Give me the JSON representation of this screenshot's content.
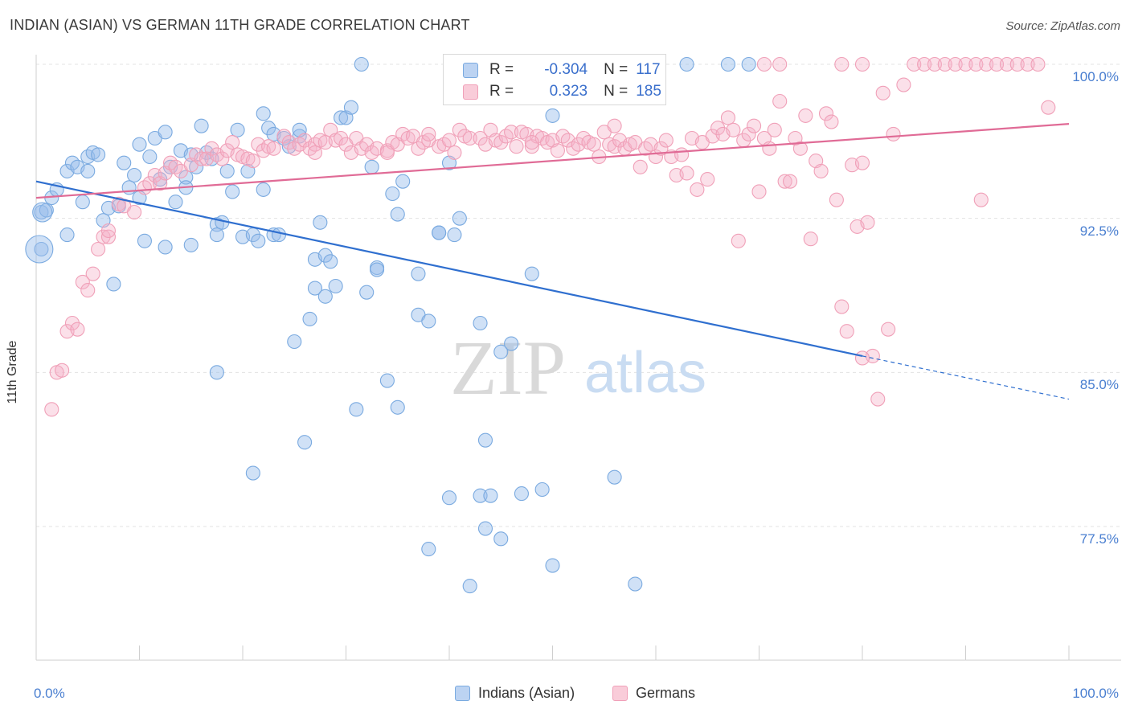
{
  "chart_data": {
    "type": "scatter",
    "title": "INDIAN (ASIAN) VS GERMAN 11TH GRADE CORRELATION CHART",
    "source": "Source: ZipAtlas.com",
    "ylabel": "11th Grade",
    "xlabel": "",
    "xlim": [
      0,
      100
    ],
    "ylim": [
      71,
      101.5
    ],
    "y_ticks": [
      {
        "value": 100.0,
        "label": "100.0%"
      },
      {
        "value": 92.5,
        "label": "92.5%"
      },
      {
        "value": 85.0,
        "label": "85.0%"
      },
      {
        "value": 77.5,
        "label": "77.5%"
      }
    ],
    "x_tick_labels": {
      "left": "0.0%",
      "right": "100.0%"
    },
    "watermark": {
      "zip": "ZIP",
      "atlas": "atlas"
    },
    "legend": {
      "r_label": "R =",
      "n_label": "N =",
      "entries": [
        {
          "name": "Indians (Asian)",
          "r": "-0.304",
          "n": "117",
          "color": "#7aaae0",
          "fill": "#a9c8ef",
          "line": "#2f6fcf"
        },
        {
          "name": "Germans",
          "r": "0.323",
          "n": "185",
          "color": "#f0a0b8",
          "fill": "#f8c4d2",
          "line": "#e06b96"
        }
      ]
    },
    "series": [
      {
        "name": "Indians (Asian)",
        "trend": {
          "x0": 0,
          "y0": 94.3,
          "x1": 80,
          "y1": 85.8,
          "dash_x1": 100,
          "dash_y1": 83.7
        },
        "points": [
          [
            0.5,
            91.0
          ],
          [
            0.5,
            92.8
          ],
          [
            1,
            92.9
          ],
          [
            1.5,
            93.5
          ],
          [
            2,
            93.9
          ],
          [
            3,
            94.8
          ],
          [
            3,
            91.7
          ],
          [
            3.5,
            95.2
          ],
          [
            4,
            95.0
          ],
          [
            4.5,
            93.3
          ],
          [
            5,
            95.5
          ],
          [
            5,
            94.8
          ],
          [
            5.5,
            95.7
          ],
          [
            6,
            95.6
          ],
          [
            6.5,
            92.4
          ],
          [
            7,
            93.0
          ],
          [
            7.5,
            89.3
          ],
          [
            8,
            93.1
          ],
          [
            8.5,
            95.2
          ],
          [
            9,
            94.0
          ],
          [
            9.5,
            94.6
          ],
          [
            10,
            96.1
          ],
          [
            10,
            93.5
          ],
          [
            10.5,
            91.4
          ],
          [
            11,
            95.5
          ],
          [
            11.5,
            96.4
          ],
          [
            12,
            94.4
          ],
          [
            12.5,
            96.7
          ],
          [
            12.5,
            91.1
          ],
          [
            13,
            95.0
          ],
          [
            13.5,
            93.3
          ],
          [
            14,
            95.8
          ],
          [
            14.5,
            94.5
          ],
          [
            14.5,
            94.0
          ],
          [
            15,
            95.6
          ],
          [
            15.5,
            95.0
          ],
          [
            16,
            97.0
          ],
          [
            16.5,
            95.7
          ],
          [
            17,
            95.4
          ],
          [
            17.5,
            92.2
          ],
          [
            17.5,
            91.7
          ],
          [
            18,
            92.3
          ],
          [
            18.5,
            94.8
          ],
          [
            19,
            93.8
          ],
          [
            19.5,
            96.8
          ],
          [
            20,
            91.6
          ],
          [
            20.5,
            94.8
          ],
          [
            21,
            91.7
          ],
          [
            21.5,
            91.4
          ],
          [
            22,
            97.6
          ],
          [
            22,
            93.9
          ],
          [
            22.5,
            96.9
          ],
          [
            23,
            96.6
          ],
          [
            23,
            91.7
          ],
          [
            23.5,
            91.7
          ],
          [
            24,
            96.4
          ],
          [
            24.5,
            96.0
          ],
          [
            25,
            86.5
          ],
          [
            25.5,
            96.5
          ],
          [
            25.5,
            96.8
          ],
          [
            26,
            81.6
          ],
          [
            26.5,
            87.6
          ],
          [
            27,
            89.1
          ],
          [
            27,
            90.5
          ],
          [
            27.5,
            92.3
          ],
          [
            28,
            88.7
          ],
          [
            28,
            90.7
          ],
          [
            28.5,
            90.4
          ],
          [
            29,
            89.2
          ],
          [
            29.5,
            97.4
          ],
          [
            30,
            97.4
          ],
          [
            30.5,
            97.9
          ],
          [
            31,
            83.2
          ],
          [
            31.5,
            100.0
          ],
          [
            32,
            88.9
          ],
          [
            32.5,
            95.0
          ],
          [
            33,
            90.1
          ],
          [
            33,
            90.0
          ],
          [
            34,
            84.6
          ],
          [
            34.5,
            93.7
          ],
          [
            35,
            83.3
          ],
          [
            35,
            92.7
          ],
          [
            35.5,
            94.3
          ],
          [
            37,
            87.8
          ],
          [
            38,
            87.5
          ],
          [
            39,
            91.8
          ],
          [
            39,
            91.8
          ],
          [
            40,
            95.2
          ],
          [
            40.5,
            91.7
          ],
          [
            41,
            92.5
          ],
          [
            42,
            74.6
          ],
          [
            43,
            87.4
          ],
          [
            43,
            79.0
          ],
          [
            43.5,
            81.7
          ],
          [
            43.5,
            77.4
          ],
          [
            44,
            79.0
          ],
          [
            45,
            86.0
          ],
          [
            45,
            76.9
          ],
          [
            46,
            86.4
          ],
          [
            47,
            79.1
          ],
          [
            48,
            89.8
          ],
          [
            50,
            75.6
          ],
          [
            50,
            97.5
          ],
          [
            56,
            79.9
          ],
          [
            58,
            74.7
          ],
          [
            63,
            100.0
          ],
          [
            67,
            100.0
          ],
          [
            69,
            100.0
          ],
          [
            49,
            79.3
          ],
          [
            21,
            80.1
          ],
          [
            15,
            91.2
          ],
          [
            17.5,
            85.0
          ],
          [
            37,
            89.8
          ],
          [
            38,
            76.4
          ],
          [
            40,
            78.9
          ]
        ]
      },
      {
        "name": "Germans",
        "trend": {
          "x0": 0,
          "y0": 93.5,
          "x1": 100,
          "y1": 97.1
        },
        "points": [
          [
            1.5,
            83.2
          ],
          [
            2,
            85.0
          ],
          [
            2.5,
            85.1
          ],
          [
            3,
            87.0
          ],
          [
            3.5,
            87.4
          ],
          [
            4,
            87.1
          ],
          [
            4.5,
            89.4
          ],
          [
            5,
            89.0
          ],
          [
            5.5,
            89.8
          ],
          [
            6,
            91.0
          ],
          [
            6.5,
            91.6
          ],
          [
            7,
            91.6
          ],
          [
            7,
            91.9
          ],
          [
            8,
            93.2
          ],
          [
            8.5,
            93.1
          ],
          [
            9.5,
            92.8
          ],
          [
            10.5,
            94.0
          ],
          [
            11,
            94.2
          ],
          [
            11.5,
            94.6
          ],
          [
            12,
            94.2
          ],
          [
            12.5,
            94.7
          ],
          [
            13,
            95.2
          ],
          [
            13.5,
            95.0
          ],
          [
            14,
            94.8
          ],
          [
            15,
            95.1
          ],
          [
            15.5,
            95.6
          ],
          [
            16,
            95.4
          ],
          [
            16.5,
            95.4
          ],
          [
            17,
            95.9
          ],
          [
            17.5,
            95.6
          ],
          [
            18,
            95.4
          ],
          [
            18.5,
            95.8
          ],
          [
            19,
            96.2
          ],
          [
            19.5,
            95.6
          ],
          [
            20,
            95.5
          ],
          [
            20.5,
            95.4
          ],
          [
            21,
            95.3
          ],
          [
            21.5,
            96.1
          ],
          [
            22,
            95.8
          ],
          [
            22.5,
            96.0
          ],
          [
            23,
            95.9
          ],
          [
            24,
            96.5
          ],
          [
            24.5,
            96.2
          ],
          [
            25,
            95.9
          ],
          [
            25.5,
            96.1
          ],
          [
            26,
            96.3
          ],
          [
            26.5,
            95.9
          ],
          [
            27,
            96.1
          ],
          [
            27.5,
            96.3
          ],
          [
            28,
            96.2
          ],
          [
            28.5,
            96.8
          ],
          [
            29,
            96.3
          ],
          [
            29.5,
            96.4
          ],
          [
            30,
            96.1
          ],
          [
            30.5,
            95.7
          ],
          [
            31,
            96.4
          ],
          [
            31.5,
            95.9
          ],
          [
            32,
            96.1
          ],
          [
            32.5,
            95.7
          ],
          [
            33,
            95.9
          ],
          [
            34,
            95.8
          ],
          [
            34.5,
            96.2
          ],
          [
            35,
            96.1
          ],
          [
            35.5,
            96.6
          ],
          [
            36,
            96.4
          ],
          [
            36.5,
            96.5
          ],
          [
            37,
            95.9
          ],
          [
            37.5,
            96.2
          ],
          [
            38,
            96.3
          ],
          [
            39,
            96.0
          ],
          [
            39.5,
            96.1
          ],
          [
            40,
            96.3
          ],
          [
            40.5,
            95.7
          ],
          [
            41,
            96.8
          ],
          [
            41.5,
            96.5
          ],
          [
            42,
            96.4
          ],
          [
            43,
            96.4
          ],
          [
            43.5,
            96.1
          ],
          [
            44,
            96.8
          ],
          [
            44.5,
            96.3
          ],
          [
            45,
            96.2
          ],
          [
            45.5,
            96.5
          ],
          [
            46,
            96.7
          ],
          [
            46.5,
            96.0
          ],
          [
            47,
            96.7
          ],
          [
            47.5,
            96.6
          ],
          [
            48,
            96.0
          ],
          [
            48.5,
            96.5
          ],
          [
            49,
            96.4
          ],
          [
            49.5,
            96.2
          ],
          [
            50,
            96.3
          ],
          [
            50.5,
            95.8
          ],
          [
            51,
            96.5
          ],
          [
            51.5,
            96.3
          ],
          [
            52,
            95.9
          ],
          [
            52.5,
            96.1
          ],
          [
            53,
            96.4
          ],
          [
            53.5,
            96.2
          ],
          [
            54,
            96.1
          ],
          [
            54.5,
            95.5
          ],
          [
            55,
            96.7
          ],
          [
            55.5,
            96.1
          ],
          [
            56,
            96.0
          ],
          [
            56.5,
            96.3
          ],
          [
            57,
            95.9
          ],
          [
            57.5,
            96.1
          ],
          [
            58,
            96.2
          ],
          [
            58.5,
            95.0
          ],
          [
            59,
            95.9
          ],
          [
            59.5,
            96.1
          ],
          [
            60,
            95.5
          ],
          [
            60.5,
            95.9
          ],
          [
            61,
            96.3
          ],
          [
            61.5,
            95.5
          ],
          [
            62,
            94.6
          ],
          [
            62.5,
            95.6
          ],
          [
            63,
            94.7
          ],
          [
            63.5,
            96.4
          ],
          [
            64,
            93.9
          ],
          [
            64.5,
            96.2
          ],
          [
            65,
            94.4
          ],
          [
            65.5,
            96.5
          ],
          [
            66,
            96.9
          ],
          [
            66.5,
            96.6
          ],
          [
            67,
            97.4
          ],
          [
            67.5,
            96.8
          ],
          [
            68,
            91.4
          ],
          [
            68.5,
            96.3
          ],
          [
            69,
            96.6
          ],
          [
            69.5,
            97.0
          ],
          [
            70,
            93.8
          ],
          [
            70.5,
            96.4
          ],
          [
            71,
            95.9
          ],
          [
            71.5,
            96.8
          ],
          [
            72,
            98.2
          ],
          [
            72.5,
            94.3
          ],
          [
            73,
            94.3
          ],
          [
            73.5,
            96.4
          ],
          [
            74,
            95.9
          ],
          [
            74.5,
            97.5
          ],
          [
            75,
            91.5
          ],
          [
            75.5,
            95.3
          ],
          [
            76,
            94.8
          ],
          [
            76.5,
            97.6
          ],
          [
            77,
            97.2
          ],
          [
            77.5,
            93.4
          ],
          [
            78,
            88.2
          ],
          [
            78.5,
            87.0
          ],
          [
            79,
            95.1
          ],
          [
            79.5,
            92.1
          ],
          [
            80,
            95.2
          ],
          [
            80.5,
            92.3
          ],
          [
            81,
            85.8
          ],
          [
            81.5,
            83.7
          ],
          [
            82,
            98.6
          ],
          [
            82.5,
            87.1
          ],
          [
            83,
            96.6
          ],
          [
            84,
            99.0
          ],
          [
            85,
            100.0
          ],
          [
            86,
            100.0
          ],
          [
            87,
            100.0
          ],
          [
            88,
            100.0
          ],
          [
            89,
            100.0
          ],
          [
            90,
            100.0
          ],
          [
            91,
            100.0
          ],
          [
            91.5,
            93.4
          ],
          [
            92,
            100.0
          ],
          [
            93,
            100.0
          ],
          [
            94,
            100.0
          ],
          [
            95,
            100.0
          ],
          [
            96,
            100.0
          ],
          [
            97,
            100.0
          ],
          [
            98,
            97.9
          ],
          [
            70.5,
            100.0
          ],
          [
            72,
            100.0
          ],
          [
            78,
            100.0
          ],
          [
            80,
            100.0
          ],
          [
            80,
            85.7
          ],
          [
            38,
            96.6
          ],
          [
            34,
            95.7
          ],
          [
            27,
            95.7
          ],
          [
            48,
            96.2
          ],
          [
            56,
            97.0
          ]
        ]
      }
    ]
  }
}
